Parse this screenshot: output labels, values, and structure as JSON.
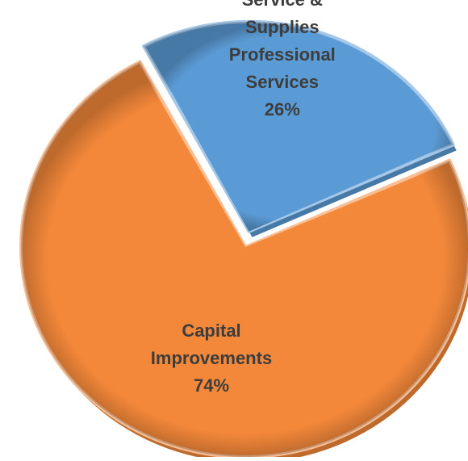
{
  "chart_data": {
    "type": "pie",
    "title": "",
    "slices": [
      {
        "label_lines": [
          "Service &",
          "Supplies",
          "Professional",
          "Services"
        ],
        "percent_label": "26%",
        "value": 26,
        "color": "#5b9bd5"
      },
      {
        "label_lines": [
          "Capital",
          "Improvements"
        ],
        "percent_label": "74%",
        "value": 74,
        "color": "#f4883a"
      }
    ],
    "label_color": "#3d3d3d",
    "legend": "none"
  }
}
